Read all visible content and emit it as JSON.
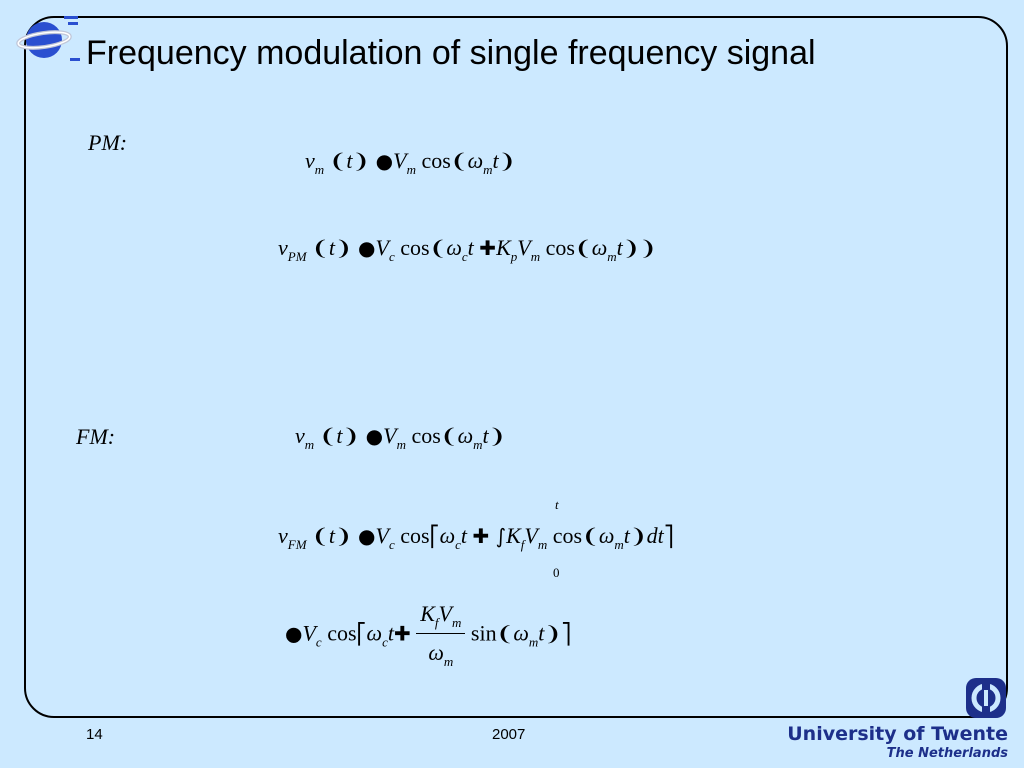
{
  "slide": {
    "title": "Frequency modulation of single frequency signal",
    "pm_label": "PM:",
    "fm_label": "FM:",
    "page_number": "14",
    "year": "2007",
    "university_line1": "University of Twente",
    "university_line2": "The Netherlands"
  },
  "equations": {
    "pm1": {
      "v": "v",
      "sub_m": "m",
      "lhs_tail": "t",
      "V": "V",
      "cos": "cos",
      "omega": "ω",
      "t": "t"
    },
    "pm2": {
      "v": "v",
      "sub_pm": "PM",
      "V": "V",
      "sub_c": "c",
      "cos": "cos",
      "omega": "ω",
      "t": "t",
      "K": "K",
      "sub_p": "p",
      "sub_m": "m"
    },
    "fm1": {
      "v": "v",
      "sub_m": "m",
      "V": "V",
      "cos": "cos",
      "omega": "ω",
      "t": "t"
    },
    "fm2": {
      "v": "v",
      "sub_fm": "FM",
      "V": "V",
      "sub_c": "c",
      "cos": "cos",
      "omega": "ω",
      "t": "t",
      "K": "K",
      "sub_f": "f",
      "sub_m": "m",
      "dt": "dt",
      "upper_limit": "t",
      "lower_limit": "0"
    },
    "fm3": {
      "V": "V",
      "sub_c": "c",
      "cos": "cos",
      "omega": "ω",
      "t": "t",
      "K": "K",
      "sub_f": "f",
      "sub_m": "m",
      "sin": "sin"
    }
  },
  "colors": {
    "background": "#cce9ff",
    "logo_blue": "#1d2f8a",
    "globe_blue": "#2a4fd0"
  }
}
